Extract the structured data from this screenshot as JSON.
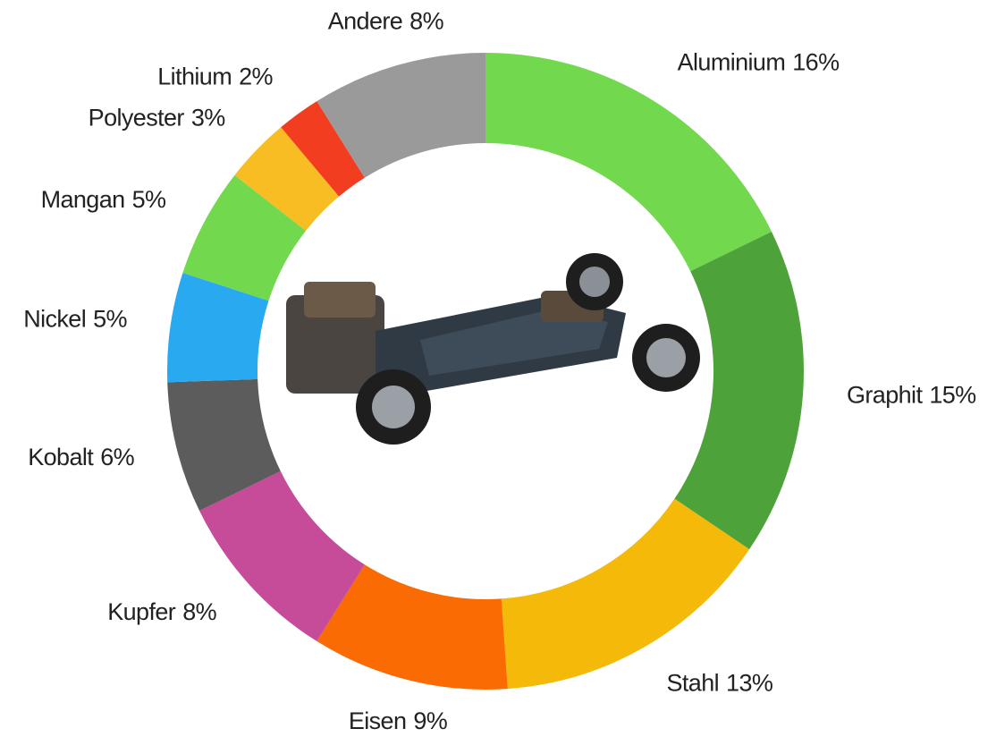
{
  "chart_data": {
    "type": "donut",
    "categories": [
      "Aluminium",
      "Graphit",
      "Stahl",
      "Eisen",
      "Kupfer",
      "Kobalt",
      "Nickel",
      "Mangan",
      "Polyester",
      "Lithium",
      "Andere"
    ],
    "values": [
      16,
      15,
      13,
      9,
      8,
      6,
      5,
      5,
      3,
      2,
      8
    ],
    "value_labels": [
      "16%",
      "15%",
      "13%",
      "9%",
      "8%",
      "6%",
      "5%",
      "5%",
      "3%",
      "2%",
      "8%"
    ],
    "colors": [
      "#72d94f",
      "#4ea23a",
      "#f5b90a",
      "#fa6b04",
      "#c64b98",
      "#5c5c5c",
      "#29a9f0",
      "#72d94f",
      "#f7bd22",
      "#f23d20",
      "#9a9a9a"
    ]
  }
}
